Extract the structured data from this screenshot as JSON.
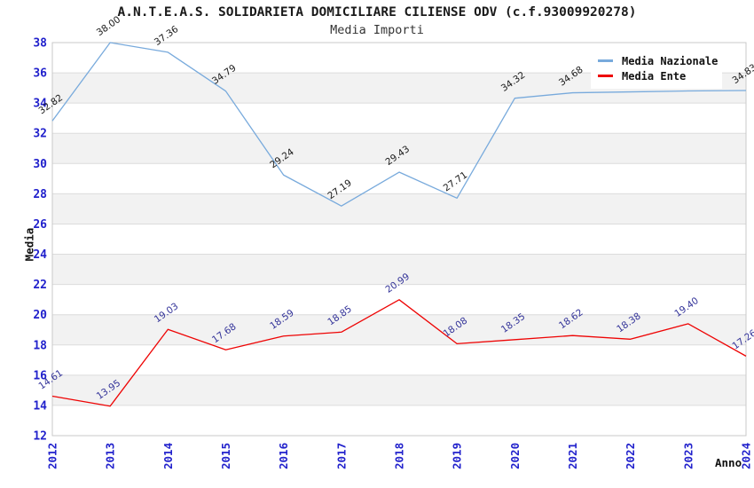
{
  "styles": {
    "background": "#FFFFFF",
    "title_color": "#1A1A1A",
    "subtitle_color": "#333333",
    "band_color": "#F2F2F2",
    "grid_color": "#DCDCDC",
    "border_color": "#C9C9C9",
    "axis_tick_color": "#2121CC",
    "legend_text_color": "#111111"
  },
  "chart_data": {
    "type": "line",
    "title": "A.N.T.E.A.S. SOLIDARIETA DOMICILIARE CILIENSE ODV (c.f.93009920278)",
    "subtitle": "Media Importi",
    "xlabel": "Anno",
    "ylabel": "Media",
    "x": [
      "2012",
      "2013",
      "2014",
      "2015",
      "2016",
      "2017",
      "2018",
      "2019",
      "2020",
      "2021",
      "2022",
      "2023",
      "2024"
    ],
    "ylim": [
      12,
      38
    ],
    "ytick_step": 2,
    "grid": "horizontal gridlines with alternating gray bands every 2 units",
    "legend_position": "top-right",
    "series": [
      {
        "name": "Media Nazionale",
        "color": "#78AADC",
        "label_color": "#1A1A1A",
        "values": [
          32.82,
          38.0,
          37.36,
          34.79,
          29.24,
          27.19,
          29.43,
          27.71,
          34.32,
          34.68,
          34.74,
          34.8,
          34.83
        ],
        "hidden_label_years": [
          "2022",
          "2023"
        ],
        "note": "2022 and 2023 point labels are covered by the legend box; their values are estimated from the line position"
      },
      {
        "name": "Media Ente",
        "color": "#EE0404",
        "label_color": "#333399",
        "values": [
          14.61,
          13.95,
          19.03,
          17.68,
          18.59,
          18.85,
          20.99,
          18.08,
          18.35,
          18.62,
          18.38,
          19.4,
          17.26
        ],
        "hidden_label_years": []
      }
    ]
  }
}
